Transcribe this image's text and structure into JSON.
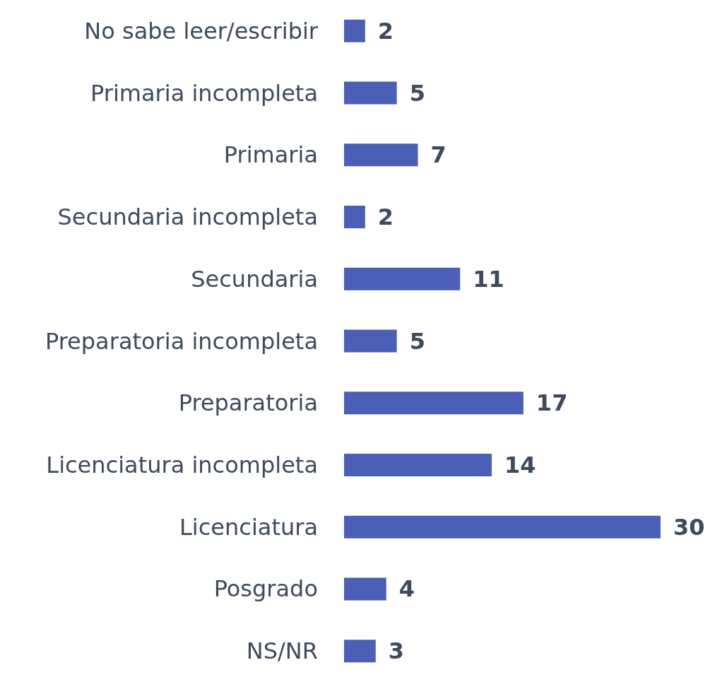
{
  "chart_data": {
    "type": "bar",
    "orientation": "horizontal",
    "categories": [
      "No sabe leer/escribir",
      "Primaria incompleta",
      "Primaria",
      "Secundaria incompleta",
      "Secundaria",
      "Preparatoria incompleta",
      "Preparatoria",
      "Licenciatura incompleta",
      "Licenciatura",
      "Posgrado",
      "NS/NR"
    ],
    "values": [
      2,
      5,
      7,
      2,
      11,
      5,
      17,
      14,
      30,
      4,
      3
    ],
    "color": "#4a5fb5",
    "data_labels": true
  }
}
